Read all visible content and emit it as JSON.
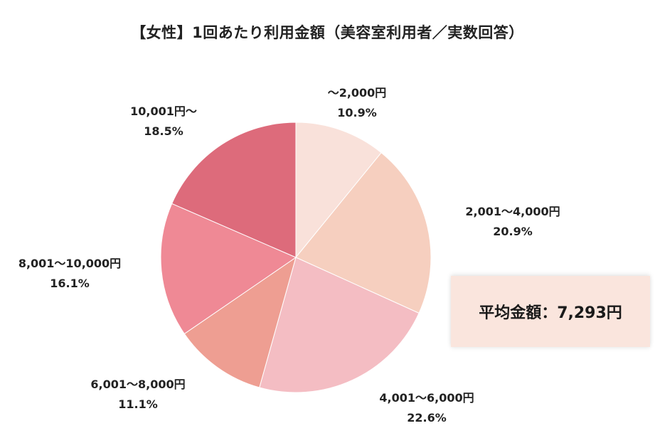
{
  "chart_data": {
    "type": "pie",
    "title": "【女性】1回あたり利用金額（美容室利用者／実数回答）",
    "slices": [
      {
        "label": "～2,000円",
        "percent_label": "10.9%",
        "value": 10.9,
        "color": "#f9e1da"
      },
      {
        "label": "2,001～4,000円",
        "percent_label": "20.9%",
        "value": 20.9,
        "color": "#f6cfbf"
      },
      {
        "label": "4,001～6,000円",
        "percent_label": "22.6%",
        "value": 22.6,
        "color": "#f4bdc3"
      },
      {
        "label": "6,001～8,000円",
        "percent_label": "11.1%",
        "value": 11.1,
        "color": "#ee9e92"
      },
      {
        "label": "8,001～10,000円",
        "percent_label": "16.1%",
        "value": 16.1,
        "color": "#ef8995"
      },
      {
        "label": "10,001円～",
        "percent_label": "18.5%",
        "value": 18.5,
        "color": "#dd6b7b"
      }
    ],
    "start_angle": "12 o'clock",
    "direction": "clockwise"
  },
  "average_box": {
    "text": "平均金額：7,293円"
  }
}
